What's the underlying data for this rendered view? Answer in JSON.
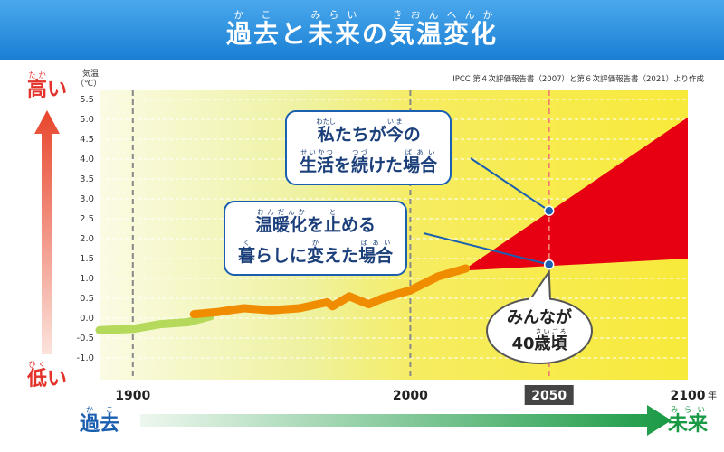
{
  "chart_data": {
    "type": "line",
    "title": [
      {
        "base": "過去",
        "rt": "かこ"
      },
      {
        "base": "と"
      },
      {
        "base": "未来",
        "rt": "みらい"
      },
      {
        "base": "の"
      },
      {
        "base": "気温変化",
        "rt": "きおんへんか"
      }
    ],
    "source": "IPCC 第４次評価報告書（2007）と第６次評価報告書（2021）より作成",
    "y_label": [
      "気温",
      "（℃）"
    ],
    "high_label": [
      {
        "base": "高",
        "rt": "たか"
      },
      {
        "base": "い"
      }
    ],
    "low_label": [
      {
        "base": "低",
        "rt": "ひく"
      },
      {
        "base": "い"
      }
    ],
    "past_label": [
      {
        "base": "過去",
        "rt": "かこ"
      }
    ],
    "future_label": [
      {
        "base": "未来",
        "rt": "みらい"
      }
    ],
    "xlim": [
      1888,
      2100
    ],
    "xticks": [
      1900,
      2000,
      2050,
      2100
    ],
    "x_unit": "年",
    "highlight_tick": 2050,
    "ylim": [
      -1.5,
      5.5
    ],
    "yticks": [
      {
        "value": -1,
        "label": "-1.0"
      },
      -0.5,
      {
        "value": 0,
        "label": "0.0"
      },
      0.5,
      {
        "value": 1,
        "label": "1.0"
      },
      1.5,
      {
        "value": 2,
        "label": "2.0"
      },
      2.5,
      {
        "value": 3,
        "label": "3.0"
      },
      3.5,
      {
        "value": 4,
        "label": "4.0"
      },
      4.5,
      {
        "value": 5,
        "label": "5.0"
      },
      5.5
    ],
    "grid": true,
    "series": [
      {
        "color": "#b5d95a",
        "x": [
          1888,
          1900,
          1910,
          1920,
          1928
        ],
        "values": [
          -0.3,
          -0.27,
          -0.15,
          -0.1,
          0.05
        ]
      },
      {
        "color": "#f08c00",
        "x": [
          1922,
          1930,
          1940,
          1950,
          1960,
          1970,
          1972,
          1978,
          1985,
          1990,
          2000,
          2010,
          2020
        ],
        "values": [
          0.1,
          0.15,
          0.25,
          0.2,
          0.25,
          0.4,
          0.3,
          0.55,
          0.35,
          0.5,
          0.7,
          1.05,
          1.25
        ]
      }
    ],
    "scenario_range": {
      "color": "#e60012",
      "x": [
        2020,
        2100
      ],
      "upper": [
        1.25,
        5.05
      ],
      "lower": [
        1.2,
        1.5
      ]
    },
    "points": [
      {
        "x": 2050,
        "value": 2.7,
        "label": [
          [
            {
              "base": "私",
              "rt": "わたし"
            },
            {
              "base": "たちが"
            },
            {
              "base": "今",
              "rt": "いま"
            },
            {
              "base": "の"
            }
          ],
          [
            {
              "base": "生活",
              "rt": "せいかつ"
            },
            {
              "base": "を"
            },
            {
              "base": "続",
              "rt": "つづ"
            },
            {
              "base": "けた"
            },
            {
              "base": "場合",
              "rt": "ばあい"
            }
          ]
        ]
      },
      {
        "x": 2050,
        "value": 1.35,
        "label": [
          [
            {
              "base": "温暖化",
              "rt": "おんだんか"
            },
            {
              "base": "を"
            },
            {
              "base": "止",
              "rt": "と"
            },
            {
              "base": "める"
            }
          ],
          [
            {
              "base": "暮",
              "rt": "く"
            },
            {
              "base": "らしに"
            },
            {
              "base": "変",
              "rt": "か"
            },
            {
              "base": "えた"
            },
            {
              "base": "場合",
              "rt": "ばあい"
            }
          ]
        ]
      }
    ],
    "bubble": [
      [
        {
          "base": "みんなが"
        }
      ],
      [
        {
          "base": "40"
        },
        {
          "base": "歳頃",
          "rt": "さいごろ"
        }
      ]
    ]
  }
}
